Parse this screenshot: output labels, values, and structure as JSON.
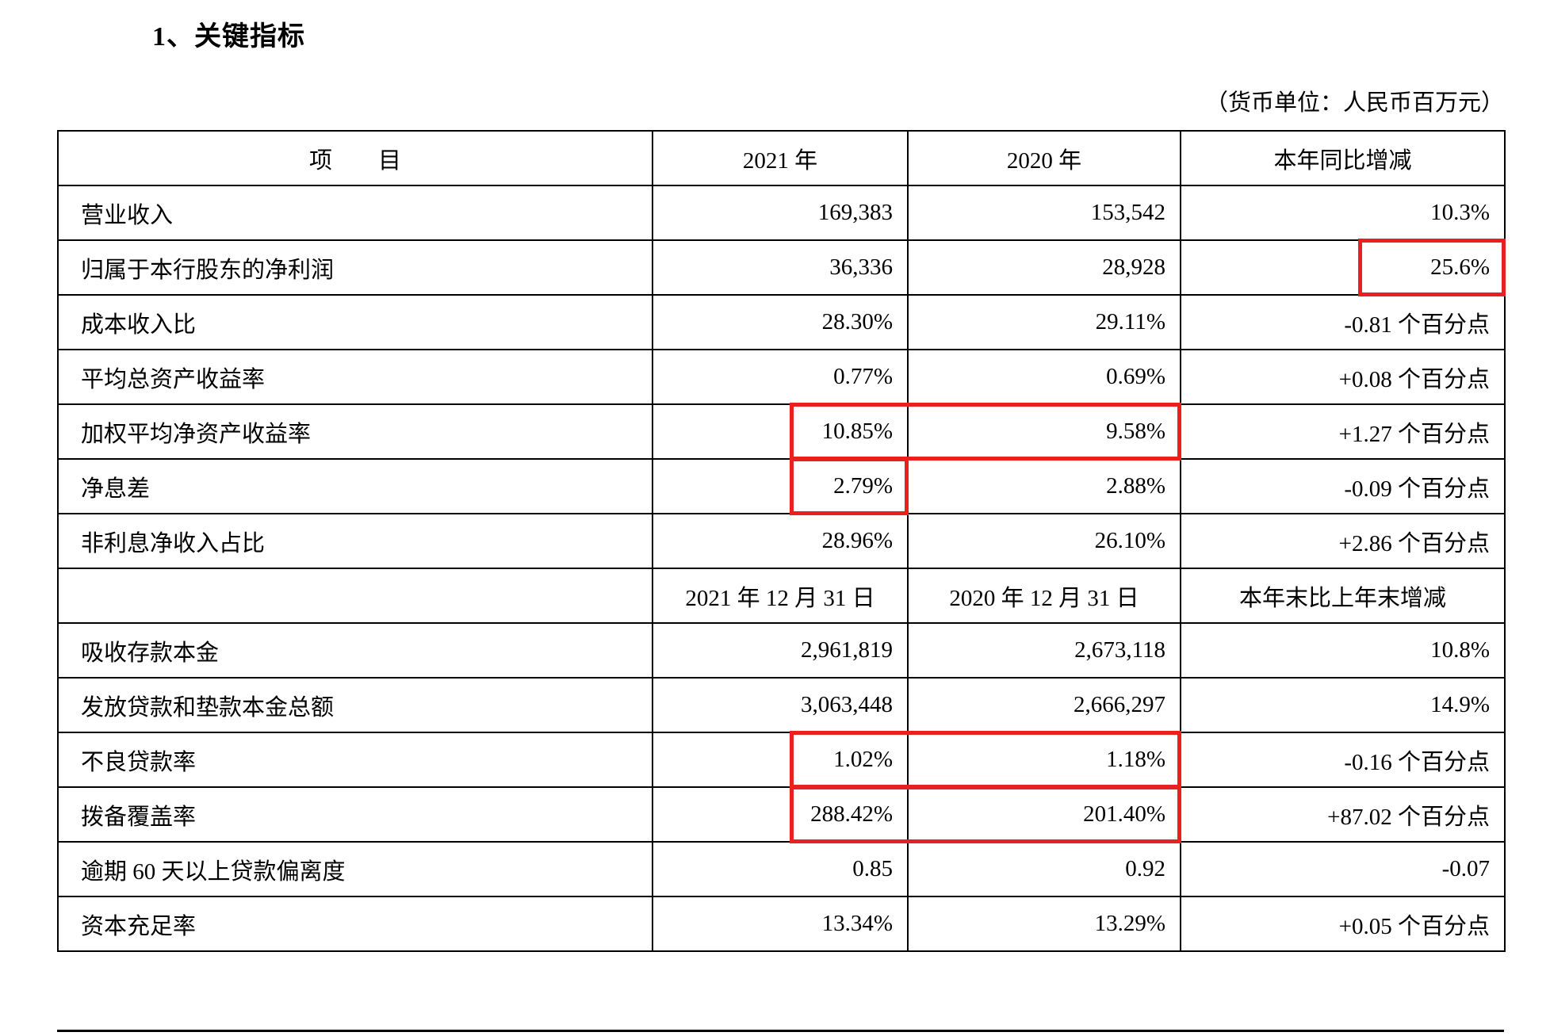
{
  "page": {
    "title": "1、关键指标",
    "unit_note": "（货币单位：人民币百万元）"
  },
  "table": {
    "highlight_color": "#e8201f",
    "columns": [
      "项　　目",
      "2021 年",
      "2020 年",
      "本年同比增减"
    ],
    "rows": [
      {
        "type": "data",
        "label": "营业收入",
        "v2021": "169,383",
        "v2020": "153,542",
        "change": "10.3%"
      },
      {
        "type": "data",
        "label": "归属于本行股东的净利润",
        "v2021": "36,336",
        "v2020": "28,928",
        "change": "25.6%",
        "hl": [
          "change"
        ]
      },
      {
        "type": "data",
        "label": "成本收入比",
        "v2021": "28.30%",
        "v2020": "29.11%",
        "change": "-0.81 个百分点"
      },
      {
        "type": "data",
        "label": "平均总资产收益率",
        "v2021": "0.77%",
        "v2020": "0.69%",
        "change": "+0.08 个百分点"
      },
      {
        "type": "data",
        "label": "加权平均净资产收益率",
        "v2021": "10.85%",
        "v2020": "9.58%",
        "change": "+1.27 个百分点",
        "hl": [
          "v2021",
          "v2020"
        ]
      },
      {
        "type": "data",
        "label": "净息差",
        "v2021": "2.79%",
        "v2020": "2.88%",
        "change": "-0.09 个百分点",
        "hl": [
          "v2021"
        ]
      },
      {
        "type": "data",
        "label": "非利息净收入占比",
        "v2021": "28.96%",
        "v2020": "26.10%",
        "change": "+2.86 个百分点"
      },
      {
        "type": "section",
        "label": "",
        "v2021": "2021 年 12 月 31 日",
        "v2020": "2020 年 12 月 31 日",
        "change": "本年末比上年末增减"
      },
      {
        "type": "data",
        "label": "吸收存款本金",
        "v2021": "2,961,819",
        "v2020": "2,673,118",
        "change": "10.8%"
      },
      {
        "type": "data",
        "label": "发放贷款和垫款本金总额",
        "v2021": "3,063,448",
        "v2020": "2,666,297",
        "change": "14.9%"
      },
      {
        "type": "data",
        "label": "不良贷款率",
        "v2021": "1.02%",
        "v2020": "1.18%",
        "change": "-0.16 个百分点",
        "hl": [
          "v2021",
          "v2020"
        ]
      },
      {
        "type": "data",
        "label": "拨备覆盖率",
        "v2021": "288.42%",
        "v2020": "201.40%",
        "change": "+87.02 个百分点",
        "hl": [
          "v2021",
          "v2020"
        ]
      },
      {
        "type": "data",
        "label": "逾期 60 天以上贷款偏离度",
        "v2021": "0.85",
        "v2020": "0.92",
        "change": "-0.07"
      },
      {
        "type": "data",
        "label": "资本充足率",
        "v2021": "13.34%",
        "v2020": "13.29%",
        "change": "+0.05 个百分点"
      }
    ]
  }
}
